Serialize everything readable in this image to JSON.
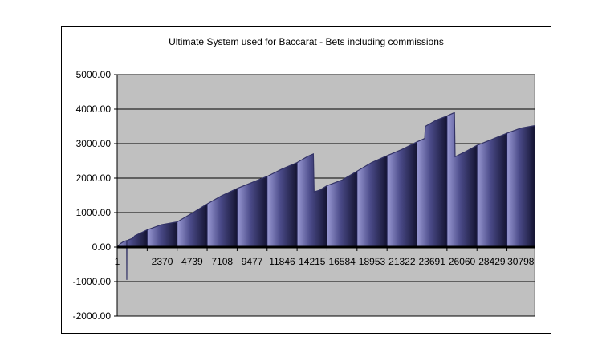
{
  "chart_data": {
    "type": "area",
    "title": "Ultimate System used for Baccarat - Bets including commissions",
    "xlabel": "",
    "ylabel": "",
    "ylim": [
      -2000,
      5000
    ],
    "y_ticks": [
      -2000,
      -1000,
      0,
      1000,
      2000,
      3000,
      4000,
      5000
    ],
    "y_tick_labels": [
      "-2000.00",
      "-1000.00",
      "0.00",
      "1000.00",
      "2000.00",
      "3000.00",
      "4000.00",
      "5000.00"
    ],
    "x_range": [
      1,
      32982
    ],
    "x_tick_labels": [
      "1",
      "2370",
      "4739",
      "7108",
      "9477",
      "11846",
      "14215",
      "16584",
      "18953",
      "21322",
      "23691",
      "26060",
      "28429",
      "30798"
    ],
    "x_tick_values": [
      1,
      2370,
      4739,
      7108,
      9477,
      11846,
      14215,
      16584,
      18953,
      21322,
      23691,
      26060,
      28429,
      30798
    ],
    "grid": true,
    "plot_background": "#c0c0c0",
    "series_color": "#333366",
    "series": [
      {
        "points": [
          [
            1,
            0
          ],
          [
            250,
            100
          ],
          [
            500,
            160
          ],
          [
            750,
            190
          ],
          [
            760,
            -950
          ],
          [
            770,
            180
          ],
          [
            900,
            210
          ],
          [
            1200,
            250
          ],
          [
            1400,
            330
          ],
          [
            2370,
            500
          ],
          [
            3500,
            650
          ],
          [
            4739,
            730
          ],
          [
            6000,
            1000
          ],
          [
            7108,
            1250
          ],
          [
            8200,
            1480
          ],
          [
            9477,
            1700
          ],
          [
            10700,
            1880
          ],
          [
            11846,
            2050
          ],
          [
            13000,
            2260
          ],
          [
            14215,
            2450
          ],
          [
            15100,
            2640
          ],
          [
            15500,
            2700
          ],
          [
            15560,
            1600
          ],
          [
            16000,
            1650
          ],
          [
            16584,
            1780
          ],
          [
            17800,
            1950
          ],
          [
            18953,
            2200
          ],
          [
            20100,
            2450
          ],
          [
            21322,
            2650
          ],
          [
            22500,
            2830
          ],
          [
            23691,
            3050
          ],
          [
            24300,
            3150
          ],
          [
            24350,
            3500
          ],
          [
            25200,
            3680
          ],
          [
            26060,
            3800
          ],
          [
            26650,
            3900
          ],
          [
            26700,
            2620
          ],
          [
            27600,
            2780
          ],
          [
            28429,
            2950
          ],
          [
            29600,
            3120
          ],
          [
            30798,
            3300
          ],
          [
            31900,
            3450
          ],
          [
            32982,
            3520
          ]
        ]
      }
    ]
  }
}
